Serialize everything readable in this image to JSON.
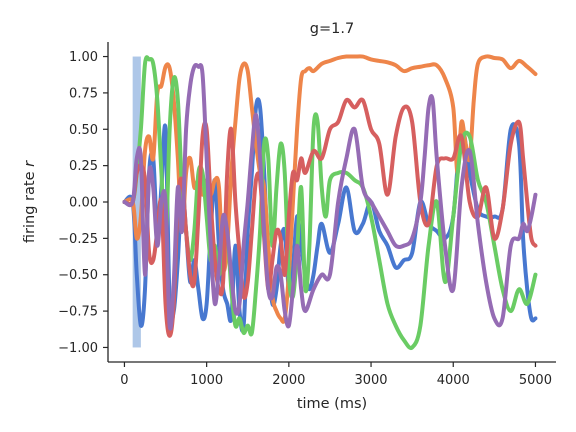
{
  "chart_data": {
    "type": "line",
    "title": "g=1.7",
    "xlabel": "time (ms)",
    "ylabel_prefix": "firing rate ",
    "ylabel_var": "r",
    "xlim": [
      -200,
      5250
    ],
    "ylim": [
      -1.1,
      1.1
    ],
    "xticks": [
      0,
      1000,
      2000,
      3000,
      4000,
      5000
    ],
    "yticks": [
      -1.0,
      -0.75,
      -0.5,
      -0.25,
      0.0,
      0.25,
      0.5,
      0.75,
      1.0
    ],
    "xtick_labels": [
      "0",
      "1000",
      "2000",
      "3000",
      "4000",
      "5000"
    ],
    "ytick_labels": [
      "−1.00",
      "−0.75",
      "−0.50",
      "−0.25",
      "0.00",
      "0.25",
      "0.50",
      "0.75",
      "1.00"
    ],
    "stimulus": {
      "x": [
        100,
        200
      ],
      "y": [
        -1.0,
        1.0
      ],
      "color": "#aec7e8"
    },
    "grid": false,
    "series": [
      {
        "color": "#4878d0",
        "x": [
          0,
          100,
          150,
          200,
          250,
          300,
          350,
          400,
          450,
          500,
          550,
          600,
          650,
          700,
          750,
          800,
          850,
          900,
          950,
          1000,
          1050,
          1100,
          1150,
          1200,
          1250,
          1300,
          1350,
          1400,
          1450,
          1500,
          1550,
          1600,
          1650,
          1700,
          1750,
          1800,
          1850,
          1900,
          1950,
          2000,
          2050,
          2100,
          2150,
          2200,
          2250,
          2300,
          2350,
          2400,
          2500,
          2600,
          2700,
          2800,
          2900,
          3000,
          3100,
          3200,
          3300,
          3400,
          3500,
          3600,
          3700,
          3800,
          3900,
          4000,
          4100,
          4200,
          4300,
          4400,
          4500,
          4600,
          4700,
          4800,
          4850,
          4900,
          4950,
          5000
        ],
        "y": [
          0.0,
          0.0,
          -0.5,
          -0.85,
          -0.6,
          0.2,
          0.3,
          -0.2,
          0.1,
          0.5,
          -0.7,
          -0.75,
          -0.4,
          0.1,
          -0.2,
          -0.55,
          -0.4,
          -0.6,
          -0.8,
          -0.7,
          -0.2,
          0.15,
          -0.3,
          -0.6,
          -0.7,
          -0.8,
          -0.3,
          -0.75,
          -0.85,
          -0.2,
          0.2,
          0.65,
          0.65,
          0.2,
          -0.4,
          -0.7,
          -0.6,
          -0.3,
          -0.2,
          -0.6,
          -0.45,
          -0.1,
          -0.3,
          -0.5,
          -0.6,
          -0.5,
          -0.3,
          -0.15,
          -0.35,
          -0.15,
          0.1,
          -0.2,
          -0.15,
          0.0,
          -0.2,
          -0.3,
          -0.45,
          -0.4,
          -0.35,
          0.0,
          -0.15,
          -0.2,
          -0.25,
          -0.1,
          0.5,
          0.2,
          -0.05,
          -0.1,
          -0.1,
          -0.05,
          0.5,
          0.4,
          -0.25,
          -0.6,
          -0.8,
          -0.8
        ]
      },
      {
        "color": "#ee854a",
        "x": [
          0,
          100,
          150,
          200,
          250,
          300,
          350,
          400,
          450,
          500,
          550,
          600,
          650,
          700,
          750,
          800,
          850,
          900,
          950,
          1000,
          1050,
          1100,
          1150,
          1200,
          1250,
          1300,
          1350,
          1400,
          1450,
          1500,
          1550,
          1600,
          1650,
          1700,
          1750,
          1800,
          1850,
          1900,
          1950,
          2000,
          2050,
          2100,
          2150,
          2200,
          2250,
          2300,
          2400,
          2500,
          2600,
          2700,
          2800,
          2900,
          3000,
          3100,
          3200,
          3300,
          3400,
          3500,
          3600,
          3700,
          3800,
          3900,
          4000,
          4050,
          4100,
          4150,
          4200,
          4250,
          4300,
          4400,
          4500,
          4600,
          4700,
          4800,
          4900,
          5000
        ],
        "y": [
          0.0,
          0.0,
          -0.25,
          -0.1,
          0.35,
          0.45,
          0.3,
          0.75,
          0.8,
          0.93,
          0.92,
          0.7,
          0.3,
          -0.2,
          0.2,
          0.3,
          0.1,
          0.15,
          0.05,
          0.15,
          0.05,
          0.15,
          0.1,
          -0.45,
          -0.3,
          0.2,
          0.55,
          0.85,
          0.95,
          0.9,
          0.65,
          0.4,
          0.2,
          0.1,
          -0.3,
          -0.65,
          -0.75,
          -0.8,
          -0.8,
          -0.5,
          0.0,
          0.5,
          0.85,
          0.9,
          0.92,
          0.9,
          0.95,
          0.97,
          0.99,
          1.0,
          1.0,
          1.0,
          0.98,
          0.97,
          0.96,
          0.94,
          0.9,
          0.92,
          0.93,
          0.94,
          0.94,
          0.85,
          0.65,
          0.2,
          0.55,
          0.4,
          0.3,
          0.7,
          0.95,
          1.0,
          0.99,
          0.98,
          0.92,
          0.97,
          0.93,
          0.88
        ]
      },
      {
        "color": "#6acc64",
        "x": [
          0,
          100,
          150,
          200,
          250,
          300,
          350,
          400,
          450,
          500,
          550,
          600,
          650,
          700,
          750,
          800,
          850,
          900,
          950,
          1000,
          1050,
          1100,
          1150,
          1200,
          1250,
          1300,
          1350,
          1400,
          1450,
          1500,
          1550,
          1600,
          1650,
          1700,
          1750,
          1800,
          1850,
          1900,
          1950,
          2000,
          2050,
          2100,
          2150,
          2200,
          2250,
          2300,
          2350,
          2400,
          2450,
          2500,
          2600,
          2700,
          2800,
          2900,
          3000,
          3100,
          3200,
          3300,
          3400,
          3500,
          3600,
          3700,
          3800,
          3900,
          4000,
          4100,
          4200,
          4300,
          4400,
          4500,
          4600,
          4700,
          4800,
          4900,
          5000
        ],
        "y": [
          0.0,
          0.0,
          0.2,
          0.5,
          0.95,
          0.98,
          0.95,
          0.7,
          0.2,
          -0.3,
          0.5,
          0.85,
          0.7,
          0.1,
          -0.2,
          -0.4,
          -0.2,
          0.2,
          0.2,
          -0.1,
          -0.4,
          -0.3,
          -0.5,
          -0.3,
          -0.2,
          -0.6,
          -0.85,
          -0.8,
          -0.9,
          -0.85,
          -0.9,
          -0.6,
          -0.2,
          0.4,
          0.3,
          -0.3,
          0.1,
          0.4,
          0.2,
          -0.5,
          -0.65,
          -0.35,
          0.1,
          -0.6,
          -0.3,
          0.5,
          0.55,
          0.1,
          -0.1,
          0.15,
          0.2,
          0.2,
          0.15,
          0.1,
          -0.1,
          -0.4,
          -0.7,
          -0.85,
          -0.95,
          -1.0,
          -0.85,
          -0.3,
          0.0,
          -0.55,
          -0.1,
          0.4,
          0.45,
          0.15,
          0.0,
          -0.3,
          -0.6,
          -0.75,
          -0.6,
          -0.7,
          -0.5
        ]
      },
      {
        "color": "#d65f5f",
        "x": [
          0,
          100,
          150,
          200,
          250,
          300,
          350,
          400,
          450,
          500,
          550,
          600,
          650,
          700,
          750,
          800,
          850,
          900,
          950,
          1000,
          1050,
          1100,
          1150,
          1200,
          1250,
          1300,
          1350,
          1400,
          1450,
          1500,
          1550,
          1600,
          1650,
          1700,
          1750,
          1800,
          1850,
          1900,
          1950,
          2000,
          2050,
          2100,
          2150,
          2200,
          2300,
          2400,
          2500,
          2600,
          2700,
          2800,
          2900,
          3000,
          3100,
          3200,
          3300,
          3400,
          3500,
          3600,
          3700,
          3800,
          3900,
          4000,
          4100,
          4200,
          4300,
          4400,
          4500,
          4600,
          4700,
          4800,
          4850,
          4900,
          4950,
          5000
        ],
        "y": [
          0.0,
          0.0,
          0.2,
          0.25,
          0.15,
          -0.35,
          -0.4,
          -0.2,
          0.0,
          -0.7,
          -0.92,
          -0.7,
          0.0,
          0.15,
          -0.2,
          -0.5,
          -0.55,
          -0.1,
          0.45,
          0.5,
          0.0,
          -0.4,
          -0.6,
          -0.55,
          0.2,
          0.5,
          0.0,
          -0.35,
          -0.65,
          -0.55,
          -0.2,
          0.15,
          0.15,
          -0.25,
          -0.6,
          -0.4,
          -0.2,
          -0.25,
          -0.5,
          -0.1,
          0.2,
          0.15,
          0.3,
          0.2,
          0.35,
          0.3,
          0.5,
          0.55,
          0.7,
          0.65,
          0.7,
          0.5,
          0.4,
          0.05,
          0.45,
          0.65,
          0.55,
          0.0,
          -0.15,
          0.25,
          0.3,
          0.3,
          0.45,
          0.0,
          -0.1,
          0.1,
          -0.25,
          -0.05,
          0.4,
          0.55,
          0.3,
          0.0,
          -0.25,
          -0.3
        ]
      },
      {
        "color": "#956cb4",
        "x": [
          0,
          100,
          150,
          200,
          250,
          300,
          350,
          400,
          450,
          500,
          550,
          600,
          650,
          700,
          750,
          800,
          850,
          900,
          950,
          1000,
          1050,
          1100,
          1150,
          1200,
          1250,
          1300,
          1350,
          1400,
          1450,
          1500,
          1550,
          1600,
          1650,
          1700,
          1750,
          1800,
          1850,
          1900,
          1950,
          2000,
          2050,
          2100,
          2150,
          2200,
          2300,
          2400,
          2500,
          2600,
          2700,
          2800,
          2900,
          3000,
          3100,
          3200,
          3300,
          3400,
          3500,
          3600,
          3650,
          3700,
          3750,
          3800,
          3900,
          4000,
          4100,
          4200,
          4300,
          4400,
          4500,
          4600,
          4700,
          4800,
          4850,
          4900,
          4950,
          5000
        ],
        "y": [
          0.0,
          0.0,
          0.3,
          0.3,
          -0.5,
          0.2,
          0.1,
          -0.3,
          0.0,
          0.0,
          -0.85,
          -0.55,
          0.1,
          -0.2,
          0.5,
          0.8,
          0.93,
          0.93,
          0.88,
          0.3,
          -0.3,
          -0.7,
          -0.45,
          -0.1,
          -0.2,
          -0.5,
          -0.75,
          -0.7,
          -0.3,
          0.0,
          0.35,
          0.6,
          0.3,
          -0.2,
          -0.6,
          -0.65,
          -0.45,
          -0.5,
          -0.75,
          -0.85,
          -0.6,
          -0.3,
          -0.6,
          -0.75,
          -0.6,
          -0.5,
          -0.5,
          0.0,
          0.3,
          0.5,
          0.1,
          0.0,
          -0.1,
          -0.2,
          -0.3,
          -0.3,
          -0.25,
          0.0,
          0.3,
          0.65,
          0.7,
          0.3,
          -0.3,
          -0.6,
          0.1,
          0.35,
          -0.15,
          -0.55,
          -0.8,
          -0.8,
          -0.3,
          -0.25,
          -0.15,
          -0.2,
          -0.1,
          0.05
        ]
      }
    ]
  }
}
